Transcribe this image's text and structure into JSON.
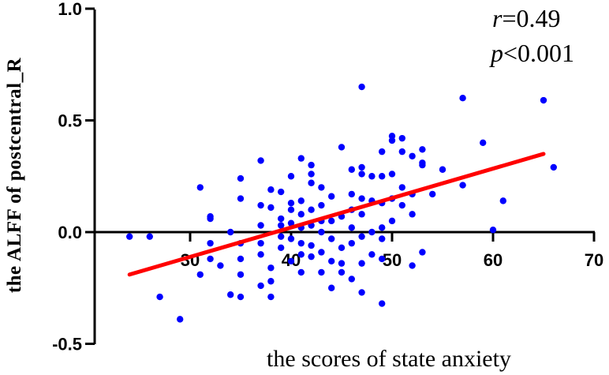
{
  "chart_data": {
    "type": "scatter",
    "xlabel": "the scores of state anxiety",
    "ylabel": "the ALFF of  postcentral_R",
    "xlim": [
      20,
      70
    ],
    "ylim": [
      -0.5,
      1.0
    ],
    "x_ticks": [
      "30",
      "40",
      "50",
      "60",
      "70"
    ],
    "y_ticks": [
      "1.0",
      "0.5",
      "0.0",
      "-0.5"
    ],
    "annotations": {
      "r_symbol": "r",
      "r_value": "=0.49",
      "p_symbol": "p",
      "p_value": "<0.001"
    },
    "colors": {
      "points": "#0000ff",
      "fit_line": "#ff0000"
    },
    "fit_line": {
      "x": [
        24,
        65
      ],
      "y": [
        -0.19,
        0.35
      ]
    },
    "points": [
      [
        24,
        -0.02
      ],
      [
        26,
        -0.02
      ],
      [
        27,
        -0.29
      ],
      [
        29,
        -0.39
      ],
      [
        31,
        0.2
      ],
      [
        31,
        -0.19
      ],
      [
        32,
        0.07
      ],
      [
        32,
        0.06
      ],
      [
        32,
        -0.05
      ],
      [
        32,
        -0.12
      ],
      [
        33,
        -0.15
      ],
      [
        34,
        0.0
      ],
      [
        34,
        -0.28
      ],
      [
        35,
        0.24
      ],
      [
        35,
        0.15
      ],
      [
        35,
        -0.05
      ],
      [
        35,
        -0.12
      ],
      [
        35,
        -0.19
      ],
      [
        35,
        -0.29
      ],
      [
        37,
        0.32
      ],
      [
        37,
        0.12
      ],
      [
        37,
        0.03
      ],
      [
        37,
        -0.05
      ],
      [
        37,
        -0.1
      ],
      [
        37,
        -0.24
      ],
      [
        38,
        0.19
      ],
      [
        38,
        0.11
      ],
      [
        38,
        -0.16
      ],
      [
        38,
        -0.22
      ],
      [
        38,
        -0.29
      ],
      [
        39,
        0.18
      ],
      [
        39,
        0.06
      ],
      [
        39,
        0.03
      ],
      [
        39,
        -0.02
      ],
      [
        39,
        -0.07
      ],
      [
        40,
        0.25
      ],
      [
        40,
        0.13
      ],
      [
        40,
        0.1
      ],
      [
        40,
        0.04
      ],
      [
        40,
        -0.03
      ],
      [
        40,
        -0.13
      ],
      [
        41,
        0.33
      ],
      [
        41,
        0.14
      ],
      [
        41,
        0.08
      ],
      [
        41,
        0.02
      ],
      [
        41,
        -0.05
      ],
      [
        41,
        -0.1
      ],
      [
        41,
        -0.18
      ],
      [
        42,
        0.3
      ],
      [
        42,
        0.26
      ],
      [
        42,
        0.22
      ],
      [
        42,
        0.1
      ],
      [
        42,
        0.03
      ],
      [
        42,
        -0.06
      ],
      [
        42,
        -0.11
      ],
      [
        43,
        0.2
      ],
      [
        43,
        0.12
      ],
      [
        43,
        0.05
      ],
      [
        43,
        0.0
      ],
      [
        43,
        -0.09
      ],
      [
        43,
        -0.18
      ],
      [
        44,
        0.16
      ],
      [
        44,
        0.05
      ],
      [
        44,
        -0.03
      ],
      [
        44,
        -0.13
      ],
      [
        44,
        -0.25
      ],
      [
        45,
        0.38
      ],
      [
        45,
        0.07
      ],
      [
        45,
        -0.07
      ],
      [
        45,
        -0.14
      ],
      [
        45,
        -0.18
      ],
      [
        46,
        0.28
      ],
      [
        46,
        0.17
      ],
      [
        46,
        0.1
      ],
      [
        46,
        0.02
      ],
      [
        46,
        -0.05
      ],
      [
        46,
        -0.21
      ],
      [
        47,
        0.65
      ],
      [
        47,
        0.29
      ],
      [
        47,
        0.26
      ],
      [
        47,
        0.15
      ],
      [
        47,
        0.08
      ],
      [
        47,
        -0.02
      ],
      [
        47,
        -0.14
      ],
      [
        47,
        -0.27
      ],
      [
        48,
        0.25
      ],
      [
        48,
        0.14
      ],
      [
        48,
        0.0
      ],
      [
        48,
        -0.1
      ],
      [
        49,
        0.36
      ],
      [
        49,
        0.25
      ],
      [
        49,
        0.13
      ],
      [
        49,
        0.02
      ],
      [
        49,
        -0.03
      ],
      [
        49,
        -0.12
      ],
      [
        49,
        -0.32
      ],
      [
        50,
        0.43
      ],
      [
        50,
        0.41
      ],
      [
        50,
        0.26
      ],
      [
        50,
        0.15
      ],
      [
        50,
        0.05
      ],
      [
        51,
        0.42
      ],
      [
        51,
        0.36
      ],
      [
        51,
        0.2
      ],
      [
        51,
        0.12
      ],
      [
        52,
        0.34
      ],
      [
        52,
        0.17
      ],
      [
        52,
        0.08
      ],
      [
        52,
        -0.15
      ],
      [
        53,
        0.37
      ],
      [
        53,
        0.31
      ],
      [
        53,
        0.3
      ],
      [
        53,
        -0.09
      ],
      [
        54,
        0.17
      ],
      [
        55,
        0.28
      ],
      [
        57,
        0.6
      ],
      [
        57,
        0.21
      ],
      [
        59,
        0.4
      ],
      [
        60,
        0.01
      ],
      [
        61,
        0.14
      ],
      [
        65,
        0.59
      ],
      [
        66,
        0.29
      ]
    ]
  }
}
